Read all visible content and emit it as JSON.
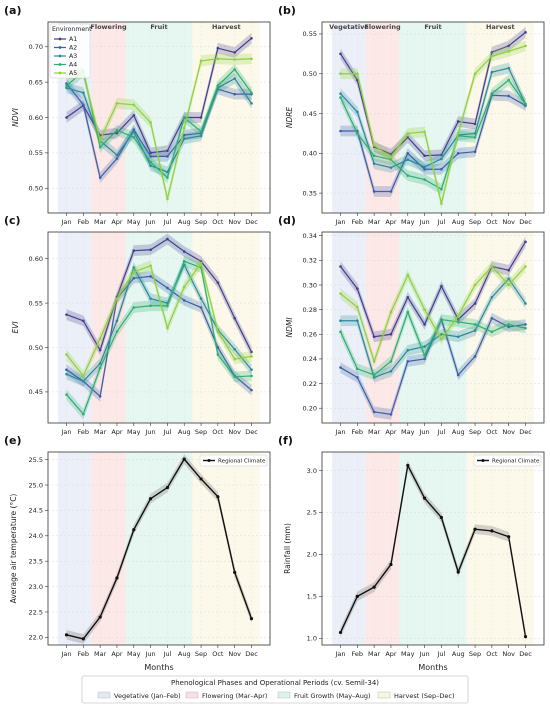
{
  "months": [
    "Jan",
    "Feb",
    "Mar",
    "Apr",
    "May",
    "Jun",
    "Jul",
    "Aug",
    "Sep",
    "Oct",
    "Nov",
    "Dec"
  ],
  "colors": {
    "A1": "#433e8f",
    "A2": "#3b5fa8",
    "A3": "#2a8a9b",
    "A4": "#2cae72",
    "A5": "#8fd13d",
    "climate": "#111111",
    "phase_vegetative": "#e2e8f3",
    "phase_flowering": "#fbdedd",
    "phase_fruit": "#dcf2ea",
    "phase_harvest": "#fbf6e1"
  },
  "legend_footer": {
    "title": "Phenological Phases and Operational Periods (cv. Semil-34)",
    "items": [
      "Vegetative (Jan–Feb)",
      "Flowering (Mar–Apr)",
      "Fruit Growth (May–Aug)",
      "Harvest (Sep–Dec)"
    ]
  },
  "chart_data": [
    {
      "panel": "(a)",
      "type": "line",
      "xlabel": "",
      "ylabel": "NDVI",
      "ylim": [
        0.465,
        0.735
      ],
      "yticks": [
        0.5,
        0.55,
        0.6,
        0.65,
        0.7
      ],
      "decimals": 2,
      "phase_labels": [
        "",
        "Flowering",
        "Fruit",
        "Harvest"
      ],
      "legend": {
        "title": "Environment",
        "position": "top-left",
        "items": [
          "A1",
          "A2",
          "A3",
          "A4",
          "A5"
        ]
      },
      "x": [
        "Jan",
        "Feb",
        "Mar",
        "Apr",
        "May",
        "Jun",
        "Jul",
        "Aug",
        "Sep",
        "Oct",
        "Nov",
        "Dec"
      ],
      "series": [
        {
          "name": "A1",
          "values": [
            0.6,
            0.617,
            0.575,
            0.578,
            0.603,
            0.55,
            0.553,
            0.6,
            0.6,
            0.698,
            0.692,
            0.712
          ]
        },
        {
          "name": "A2",
          "values": [
            0.648,
            0.618,
            0.515,
            0.542,
            0.583,
            0.545,
            0.545,
            0.575,
            0.578,
            0.64,
            0.633,
            0.633
          ]
        },
        {
          "name": "A3",
          "values": [
            0.642,
            0.635,
            0.567,
            0.547,
            0.58,
            0.532,
            0.523,
            0.57,
            0.574,
            0.642,
            0.655,
            0.62
          ]
        },
        {
          "name": "A4",
          "values": [
            0.645,
            0.665,
            0.558,
            0.582,
            0.572,
            0.537,
            0.515,
            0.6,
            0.58,
            0.645,
            0.668,
            0.635
          ]
        },
        {
          "name": "A5",
          "values": [
            0.662,
            0.662,
            0.568,
            0.62,
            0.618,
            0.593,
            0.485,
            0.585,
            0.68,
            0.683,
            0.682,
            0.683
          ]
        }
      ]
    },
    {
      "panel": "(b)",
      "type": "line",
      "xlabel": "",
      "ylabel": "NDRE",
      "ylim": [
        0.325,
        0.565
      ],
      "yticks": [
        0.35,
        0.4,
        0.45,
        0.5,
        0.55
      ],
      "decimals": 2,
      "phase_labels": [
        "Vegetative",
        "Flowering",
        "Fruit",
        "Harvest"
      ],
      "x": [
        "Jan",
        "Feb",
        "Mar",
        "Apr",
        "May",
        "Jun",
        "Jul",
        "Aug",
        "Sep",
        "Oct",
        "Nov",
        "Dec"
      ],
      "series": [
        {
          "name": "A1",
          "values": [
            0.525,
            0.492,
            0.408,
            0.399,
            0.42,
            0.397,
            0.398,
            0.44,
            0.437,
            0.527,
            0.535,
            0.552
          ]
        },
        {
          "name": "A2",
          "values": [
            0.428,
            0.428,
            0.352,
            0.352,
            0.4,
            0.38,
            0.38,
            0.4,
            0.402,
            0.473,
            0.472,
            0.46
          ]
        },
        {
          "name": "A3",
          "values": [
            0.475,
            0.452,
            0.387,
            0.382,
            0.392,
            0.383,
            0.393,
            0.423,
            0.425,
            0.502,
            0.507,
            0.462
          ]
        },
        {
          "name": "A4",
          "values": [
            0.47,
            0.425,
            0.397,
            0.392,
            0.372,
            0.367,
            0.355,
            0.422,
            0.42,
            0.475,
            0.492,
            0.462
          ]
        },
        {
          "name": "A5",
          "values": [
            0.5,
            0.5,
            0.41,
            0.395,
            0.425,
            0.427,
            0.337,
            0.425,
            0.5,
            0.522,
            0.528,
            0.535
          ]
        }
      ]
    },
    {
      "panel": "(c)",
      "type": "line",
      "xlabel": "",
      "ylabel": "EVI",
      "ylim": [
        0.415,
        0.63
      ],
      "yticks": [
        0.45,
        0.5,
        0.55,
        0.6
      ],
      "decimals": 2,
      "phase_labels": [
        "",
        "",
        "",
        ""
      ],
      "x": [
        "Jan",
        "Feb",
        "Mar",
        "Apr",
        "May",
        "Jun",
        "Jul",
        "Aug",
        "Sep",
        "Oct",
        "Nov",
        "Dec"
      ],
      "series": [
        {
          "name": "A1",
          "values": [
            0.537,
            0.53,
            0.497,
            0.557,
            0.609,
            0.61,
            0.622,
            0.608,
            0.597,
            0.573,
            0.533,
            0.495
          ]
        },
        {
          "name": "A2",
          "values": [
            0.475,
            0.462,
            0.445,
            0.555,
            0.578,
            0.58,
            0.567,
            0.553,
            0.545,
            0.5,
            0.468,
            0.452
          ]
        },
        {
          "name": "A3",
          "values": [
            0.47,
            0.462,
            0.482,
            0.53,
            0.59,
            0.555,
            0.55,
            0.593,
            0.555,
            0.52,
            0.498,
            0.475
          ]
        },
        {
          "name": "A4",
          "values": [
            0.447,
            0.425,
            0.477,
            0.518,
            0.545,
            0.547,
            0.547,
            0.597,
            0.59,
            0.492,
            0.467,
            0.468
          ]
        },
        {
          "name": "A5",
          "values": [
            0.492,
            0.468,
            0.51,
            0.555,
            0.585,
            0.592,
            0.522,
            0.568,
            0.595,
            0.518,
            0.487,
            0.49
          ]
        }
      ]
    },
    {
      "panel": "(d)",
      "type": "line",
      "xlabel": "",
      "ylabel": "NDMI",
      "ylim": [
        0.188,
        0.343
      ],
      "yticks": [
        0.2,
        0.22,
        0.24,
        0.26,
        0.28,
        0.3,
        0.32,
        0.34
      ],
      "decimals": 2,
      "phase_labels": [
        "",
        "",
        "",
        ""
      ],
      "x": [
        "Jan",
        "Feb",
        "Mar",
        "Apr",
        "May",
        "Jun",
        "Jul",
        "Aug",
        "Sep",
        "Oct",
        "Nov",
        "Dec"
      ],
      "series": [
        {
          "name": "A1",
          "values": [
            0.315,
            0.297,
            0.258,
            0.26,
            0.29,
            0.268,
            0.299,
            0.272,
            0.285,
            0.315,
            0.312,
            0.335
          ]
        },
        {
          "name": "A2",
          "values": [
            0.233,
            0.225,
            0.197,
            0.195,
            0.238,
            0.24,
            0.272,
            0.227,
            0.242,
            0.273,
            0.266,
            0.268
          ]
        },
        {
          "name": "A3",
          "values": [
            0.271,
            0.271,
            0.225,
            0.23,
            0.247,
            0.25,
            0.26,
            0.258,
            0.263,
            0.29,
            0.305,
            0.285
          ]
        },
        {
          "name": "A4",
          "values": [
            0.262,
            0.232,
            0.227,
            0.238,
            0.278,
            0.243,
            0.272,
            0.27,
            0.268,
            0.262,
            0.268,
            0.265
          ]
        },
        {
          "name": "A5",
          "values": [
            0.293,
            0.282,
            0.238,
            0.278,
            0.308,
            0.28,
            0.256,
            0.275,
            0.3,
            0.315,
            0.3,
            0.315
          ]
        }
      ]
    },
    {
      "panel": "(e)",
      "type": "line",
      "xlabel": "Months",
      "ylabel": "Average air temperature (°C)",
      "ylim": [
        21.85,
        25.65
      ],
      "yticks": [
        22.0,
        22.5,
        23.0,
        23.5,
        24.0,
        24.5,
        25.0,
        25.5
      ],
      "decimals": 1,
      "phase_labels": [
        "",
        "",
        "",
        ""
      ],
      "legend": {
        "position": "top-right",
        "items": [
          "Regional Climate"
        ]
      },
      "x": [
        "Jan",
        "Feb",
        "Mar",
        "Apr",
        "May",
        "Jun",
        "Jul",
        "Aug",
        "Sep",
        "Oct",
        "Nov",
        "Dec"
      ],
      "series": [
        {
          "name": "Regional Climate",
          "values": [
            22.05,
            21.97,
            22.4,
            23.17,
            24.12,
            24.73,
            24.95,
            25.51,
            25.12,
            24.77,
            23.28,
            22.37
          ]
        }
      ]
    },
    {
      "panel": "(f)",
      "type": "line",
      "xlabel": "Months",
      "ylabel": "Rainfall (mm)",
      "ylim": [
        0.92,
        3.22
      ],
      "yticks": [
        1.0,
        1.5,
        2.0,
        2.5,
        3.0
      ],
      "decimals": 1,
      "phase_labels": [
        "",
        "",
        "",
        ""
      ],
      "legend": {
        "position": "top-right",
        "items": [
          "Regional Climate"
        ]
      },
      "x": [
        "Jan",
        "Feb",
        "Mar",
        "Apr",
        "May",
        "Jun",
        "Jul",
        "Aug",
        "Sep",
        "Oct",
        "Nov",
        "Dec"
      ],
      "series": [
        {
          "name": "Regional Climate",
          "values": [
            1.07,
            1.5,
            1.61,
            1.88,
            3.06,
            2.67,
            2.44,
            1.79,
            2.3,
            2.28,
            2.21,
            1.02
          ]
        }
      ]
    }
  ]
}
